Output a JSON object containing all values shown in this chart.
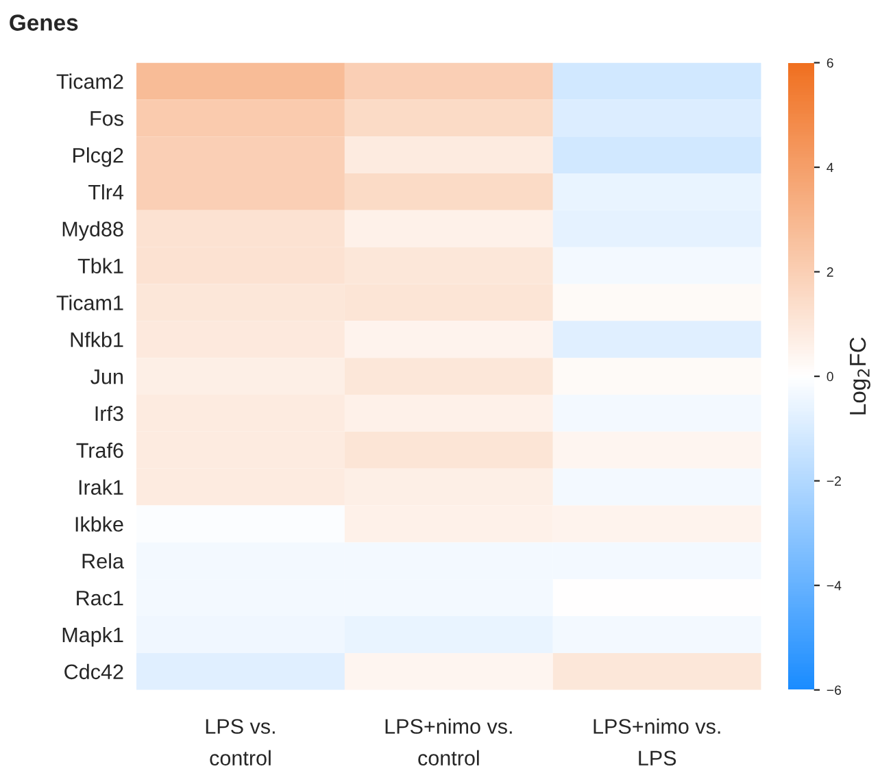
{
  "chart_data": {
    "type": "heatmap",
    "ylabel": "Genes",
    "clabel": "Log$_{2}$FC",
    "categories": [
      "LPS vs.\ncontrol",
      "LPS+nimo vs.\ncontrol",
      "LPS+nimo vs.\nLPS"
    ],
    "y_categories": [
      "Ticam2",
      "Fos",
      "Plcg2",
      "Tlr4",
      "Myd88",
      "Tbk1",
      "Ticam1",
      "Nfkb1",
      "Jun",
      "Irf3",
      "Traf6",
      "Irak1",
      "Ikbke",
      "Rela",
      "Rac1",
      "Mapk1",
      "Cdc42"
    ],
    "cells": [
      [
        2.8,
        2.0,
        -1.2
      ],
      [
        2.2,
        1.5,
        -0.9
      ],
      [
        2.0,
        0.8,
        -1.2
      ],
      [
        2.0,
        1.5,
        -0.6
      ],
      [
        1.2,
        0.6,
        -0.7
      ],
      [
        1.2,
        1.0,
        -0.3
      ],
      [
        1.0,
        1.1,
        0.2
      ],
      [
        0.9,
        0.5,
        -0.8
      ],
      [
        0.7,
        1.0,
        0.2
      ],
      [
        0.8,
        0.6,
        -0.3
      ],
      [
        0.8,
        1.1,
        0.4
      ],
      [
        0.8,
        0.7,
        -0.3
      ],
      [
        -0.1,
        0.6,
        0.5
      ],
      [
        -0.3,
        -0.3,
        -0.3
      ],
      [
        -0.3,
        -0.3,
        0.0
      ],
      [
        -0.4,
        -0.6,
        -0.3
      ],
      [
        -0.8,
        0.4,
        1.0
      ]
    ],
    "clim": [
      -6,
      6
    ],
    "cticks": [
      {
        "value": -6,
        "label": "−6"
      },
      {
        "value": -4,
        "label": "−4"
      },
      {
        "value": -2,
        "label": "−2"
      },
      0,
      2,
      4,
      6
    ],
    "grid": false
  }
}
